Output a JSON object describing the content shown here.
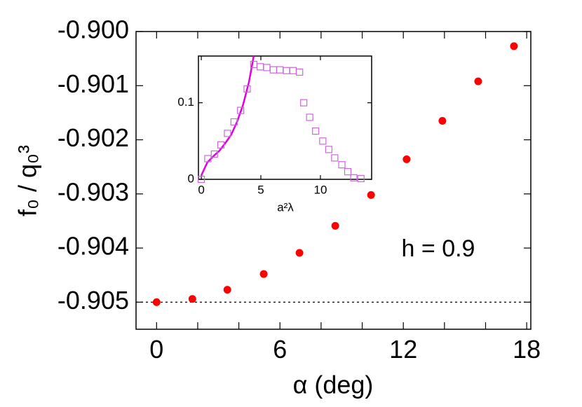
{
  "chart_data": [
    {
      "type": "scatter",
      "x_label": "α (deg)",
      "y_label": "f₀ / q₀³",
      "annotation": "h = 0.9",
      "xlim": [
        -1,
        18.2
      ],
      "ylim": [
        -0.9055,
        -0.9
      ],
      "xticks": [
        0,
        6,
        12,
        18
      ],
      "xminorticks": [
        2,
        4,
        8,
        10,
        14,
        16
      ],
      "yticks": [
        {
          "value": -0.905,
          "label": "-0.905"
        },
        {
          "value": -0.904,
          "label": "-0.904"
        },
        {
          "value": -0.903,
          "label": "-0.903"
        },
        {
          "value": -0.902,
          "label": "-0.902"
        },
        {
          "value": -0.901,
          "label": "-0.901"
        },
        {
          "value": -0.9,
          "label": "-0.900"
        }
      ],
      "hline": -0.905,
      "series": [
        {
          "color": "#ff0000",
          "marker": "circle",
          "x": [
            0,
            1.74,
            3.44,
            5.21,
            6.95,
            8.69,
            10.43,
            12.16,
            13.9,
            15.64,
            17.38
          ],
          "values": [
            -0.905,
            -0.90494,
            -0.90477,
            -0.90448,
            -0.90409,
            -0.90359,
            -0.90302,
            -0.90236,
            -0.90165,
            -0.90092,
            -0.90027
          ]
        }
      ]
    },
    {
      "type": "scatter",
      "x_label": "a²λ",
      "xlim": [
        -0.24,
        14.3
      ],
      "ylim": [
        0,
        0.161
      ],
      "xticks": [
        0,
        5,
        10
      ],
      "yticks": [
        0,
        0.1
      ],
      "series": [
        {
          "color": "#e000e0",
          "marker": "line",
          "x": [
            0,
            0.5,
            1,
            1.5,
            2,
            2.5,
            3,
            3.5,
            4,
            4.4
          ],
          "values": [
            0.005,
            0.022,
            0.03,
            0.037,
            0.047,
            0.058,
            0.075,
            0.097,
            0.127,
            0.161
          ]
        },
        {
          "color": "#cc66dd",
          "marker": "square",
          "x": [
            0,
            0.55,
            1.1,
            1.65,
            2.2,
            2.75,
            3.3,
            3.85,
            4.4,
            4.95,
            5.5,
            6.05,
            6.6,
            7.15,
            7.7,
            8.25,
            8.6,
            9.1,
            9.6,
            10.2,
            10.7,
            11.2,
            11.8,
            12.3,
            12.8,
            13.4
          ],
          "values": [
            0,
            0.027,
            0.033,
            0.045,
            0.06,
            0.075,
            0.09,
            0.118,
            0.15,
            0.147,
            0.146,
            0.143,
            0.143,
            0.142,
            0.142,
            0.14,
            0.1,
            0.081,
            0.063,
            0.05,
            0.039,
            0.028,
            0.019,
            0.01,
            0.002,
            0.001
          ]
        }
      ]
    }
  ]
}
